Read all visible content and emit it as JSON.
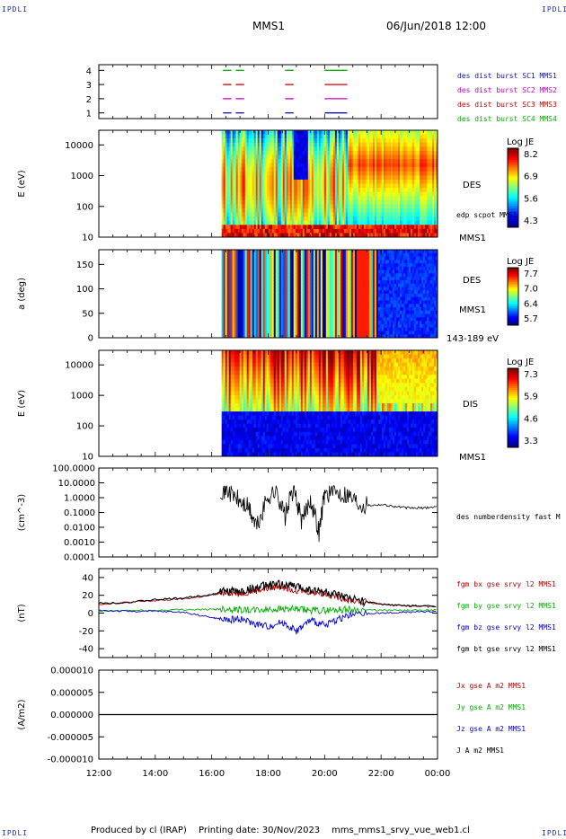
{
  "header": {
    "corner_label": "IPDLI",
    "spacecraft": "MMS1",
    "datetime": "06/Jun/2018 12:00"
  },
  "footer": {
    "produced_by": "Produced by cl (IRAP)",
    "printing_date": "Printing date: 30/Nov/2023",
    "filename": "mms_mms1_srvy_vue_web1.cl"
  },
  "chart_data": [
    {
      "type": "timeline",
      "panel": "burst-availability",
      "y_ticks": [
        "1",
        "2",
        "3",
        "4"
      ],
      "ylim": [
        0.6,
        4.4
      ],
      "legend": [
        {
          "label": "des dist burst SC1 MMS1",
          "color": "#1010c8",
          "row": 1
        },
        {
          "label": "des dist burst SC2 MMS2",
          "color": "#c800c8",
          "row": 2
        },
        {
          "label": "des dist burst SC3 MMS3",
          "color": "#d00000",
          "row": 3
        },
        {
          "label": "des dist burst SC4 MMS4",
          "color": "#00b000",
          "row": 4
        }
      ],
      "intervals_hours": [
        [
          16.4,
          16.7
        ],
        [
          16.85,
          17.15
        ],
        [
          18.6,
          18.9
        ],
        [
          20.0,
          20.8
        ]
      ]
    },
    {
      "type": "heatmap",
      "panel": "des-energy-spectrogram",
      "ylabel": "E (eV)",
      "yscale": "log",
      "ylim": [
        10,
        30000
      ],
      "y_ticks": [
        "10",
        "100",
        "1000",
        "10000"
      ],
      "colorbar": {
        "title": "Log JE",
        "max": 8.2,
        "ticks": [
          "8.2",
          "6.9",
          "5.6",
          "4.3"
        ]
      },
      "labels": [
        "DES",
        "edp scpot MMS1",
        "MMS1"
      ],
      "data_start_hour": 16.35
    },
    {
      "type": "heatmap",
      "panel": "des-pitch-angle",
      "ylabel": "a (deg)",
      "ylim": [
        0,
        180
      ],
      "y_ticks": [
        "0",
        "50",
        "100",
        "150"
      ],
      "colorbar": {
        "title": "Log JE",
        "max": 7.7,
        "ticks": [
          "7.7",
          "7.0",
          "6.4",
          "5.7"
        ]
      },
      "labels": [
        "DES",
        "MMS1",
        "143-189 eV"
      ],
      "data_start_hour": 16.35
    },
    {
      "type": "heatmap",
      "panel": "dis-energy-spectrogram",
      "ylabel": "E (eV)",
      "yscale": "log",
      "ylim": [
        10,
        30000
      ],
      "y_ticks": [
        "10",
        "100",
        "1000",
        "10000"
      ],
      "colorbar": {
        "title": "Log JE",
        "max": 7.3,
        "ticks": [
          "7.3",
          "5.9",
          "4.6",
          "3.3"
        ]
      },
      "labels": [
        "DIS",
        "MMS1"
      ],
      "data_start_hour": 16.35
    },
    {
      "type": "line",
      "panel": "density",
      "ylabel": "(cm^-3)",
      "yscale": "log",
      "ylim": [
        0.0001,
        100
      ],
      "y_ticks": [
        "0.0001",
        "0.0010",
        "0.0100",
        "0.1000",
        "1.0000",
        "10.0000",
        "100.0000"
      ],
      "legend": [
        {
          "label": "des numberdensity fast M",
          "color": "#000000"
        }
      ],
      "series": [
        {
          "x": [
            16.3,
            16.6,
            17.0,
            17.3,
            17.6,
            18.0,
            18.3,
            18.6,
            18.9,
            19.2,
            19.5,
            19.8,
            20.0,
            20.4,
            20.8,
            21.2,
            21.6,
            22.0,
            22.5,
            23.0,
            23.5,
            24.0
          ],
          "y": [
            4,
            3,
            0.5,
            0.2,
            0.01,
            1.2,
            3,
            0.05,
            5,
            0.02,
            1,
            0.005,
            2,
            2.5,
            1.8,
            0.5,
            0.3,
            0.35,
            0.25,
            0.2,
            0.2,
            0.25
          ]
        }
      ]
    },
    {
      "type": "line",
      "panel": "magnetic-field",
      "ylabel": "(nT)",
      "ylim": [
        -50,
        50
      ],
      "y_ticks": [
        "-40",
        "-20",
        "0",
        "20",
        "40"
      ],
      "legend": [
        {
          "label": "fgm bx gse srvy l2 MMS1",
          "color": "#c00000"
        },
        {
          "label": "fgm by gse srvy l2 MMS1",
          "color": "#00b000"
        },
        {
          "label": "fgm bz gse srvy l2 MMS1",
          "color": "#0000e0"
        },
        {
          "label": "fgm bt gse srvy l2 MMS1",
          "color": "#000000"
        }
      ],
      "x": [
        12,
        13,
        14,
        15,
        16,
        16.5,
        17,
        17.5,
        18,
        18.5,
        19,
        19.5,
        20,
        20.5,
        21,
        22,
        23,
        24
      ],
      "series": [
        {
          "name": "bx",
          "values": [
            10,
            12,
            14,
            16,
            20,
            24,
            22,
            25,
            28,
            30,
            26,
            24,
            22,
            18,
            14,
            10,
            8,
            7
          ]
        },
        {
          "name": "by",
          "values": [
            2,
            3,
            3,
            4,
            4,
            5,
            4,
            3,
            4,
            5,
            4,
            3,
            3,
            4,
            4,
            3,
            3,
            3
          ]
        },
        {
          "name": "bz",
          "values": [
            3,
            2,
            2,
            1,
            -5,
            -8,
            -6,
            -12,
            -15,
            -10,
            -20,
            -8,
            -14,
            -6,
            -2,
            0,
            1,
            2
          ]
        },
        {
          "name": "bt",
          "values": [
            11,
            12,
            15,
            17,
            21,
            25,
            24,
            28,
            31,
            32,
            30,
            26,
            24,
            19,
            15,
            10,
            8,
            8
          ]
        }
      ]
    },
    {
      "type": "line",
      "panel": "current-density",
      "ylabel": "(A/m2)",
      "ylim": [
        -1e-05,
        1e-05
      ],
      "y_ticks": [
        "-0.000010",
        "-0.000005",
        "0.000000",
        "0.000005",
        "0.000010"
      ],
      "legend": [
        {
          "label": "Jx gse A m2 MMS1",
          "color": "#c00000"
        },
        {
          "label": "Jy gse A m2 MMS1",
          "color": "#00b000"
        },
        {
          "label": "Jz gse A m2 MMS1",
          "color": "#0000e0"
        },
        {
          "label": "J A m2 MMS1",
          "color": "#000000"
        }
      ],
      "series": [
        {
          "x": [
            12,
            24
          ],
          "y": [
            0,
            0
          ]
        }
      ]
    }
  ],
  "x_axis": {
    "range_hours": [
      12,
      24
    ],
    "tick_labels": [
      "12:00",
      "14:00",
      "16:00",
      "18:00",
      "20:00",
      "22:00",
      "00:00"
    ]
  }
}
